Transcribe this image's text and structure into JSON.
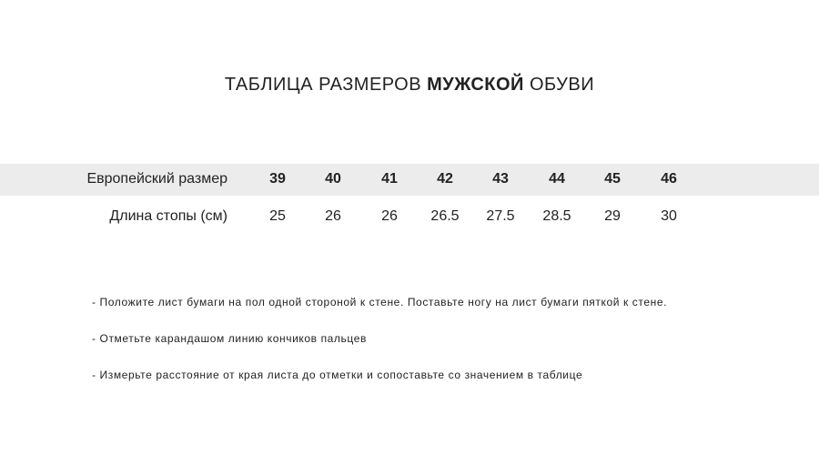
{
  "title": {
    "prefix": "ТАБЛИЦА РАЗМЕРОВ ",
    "bold": "МУЖСКОЙ",
    "suffix": " ОБУВИ"
  },
  "table": {
    "rows": [
      {
        "label": "Европейский размер",
        "values": [
          "39",
          "40",
          "41",
          "42",
          "43",
          "44",
          "45",
          "46"
        ]
      },
      {
        "label": "Длина стопы (см)",
        "values": [
          "25",
          "26",
          "26",
          "26.5",
          "27.5",
          "28.5",
          "29",
          "30"
        ]
      }
    ],
    "band_color": "#ececec"
  },
  "instructions": [
    "- Положите лист бумаги на пол одной стороной к стене. Поставьте ногу на лист бумаги пяткой к стене.",
    "- Отметьте карандашом линию кончиков пальцев",
    "- Измерьте расстояние от края листа до отметки и сопоставьте со значением в таблице"
  ]
}
